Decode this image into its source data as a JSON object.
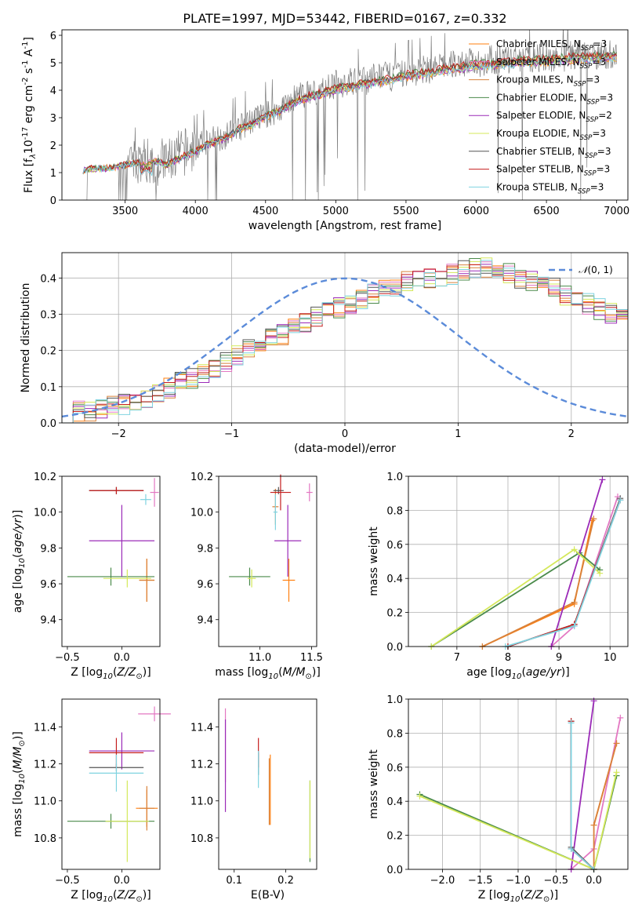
{
  "title": "PLATE=1997, MJD=53442, FIBERID=0167, z=0.332",
  "series": [
    {
      "name": "Chabrier MILES",
      "label": "Chabrier MILES, N$_{SSP}$=3",
      "color": "#ff7f0e"
    },
    {
      "name": "Salpeter MILES",
      "label": "Salpeter MILES, N$_{SSP}$=3",
      "color": "#e377c2"
    },
    {
      "name": "Kroupa MILES",
      "label": "Kroupa MILES, N$_{SSP}$=3",
      "color": "#d9823b"
    },
    {
      "name": "Chabrier ELODIE",
      "label": "Chabrier ELODIE, N$_{SSP}$=3",
      "color": "#4a8a4a"
    },
    {
      "name": "Salpeter ELODIE",
      "label": "Salpeter ELODIE, N$_{SSP}$=2",
      "color": "#9b2bb8"
    },
    {
      "name": "Kroupa ELODIE",
      "label": "Kroupa ELODIE, N$_{SSP}$=3",
      "color": "#d4e85a"
    },
    {
      "name": "Chabrier STELIB",
      "label": "Chabrier STELIB, N$_{SSP}$=3",
      "color": "#555555"
    },
    {
      "name": "Salpeter STELIB",
      "label": "Salpeter STELIB, N$_{SSP}$=3",
      "color": "#c41e1e"
    },
    {
      "name": "Kroupa STELIB",
      "label": "Kroupa STELIB, N$_{SSP}$=3",
      "color": "#7fd3e0"
    }
  ],
  "chart_data": [
    {
      "id": "spectrum",
      "type": "line",
      "xlabel": "wavelength [Angstrom, rest frame]",
      "ylabel": "Flux [f$_\\lambda$10$^{-17}$ erg cm$^{-2}$ s$^{-1}$ A$^{-1}$]",
      "xlim": [
        3050,
        7080
      ],
      "ylim": [
        0,
        6.2
      ],
      "xticks": [
        3500,
        4000,
        4500,
        5000,
        5500,
        6000,
        6500,
        7000
      ],
      "yticks": [
        0,
        1,
        2,
        3,
        4,
        5,
        6
      ],
      "grid": false,
      "legend": "right",
      "data_color": "#808080",
      "x": [
        3200,
        3260,
        3400,
        3500,
        3600,
        3700,
        3800,
        3900,
        4000,
        4100,
        4200,
        4300,
        4400,
        4500,
        4600,
        4700,
        4800,
        4900,
        5000,
        5100,
        5200,
        5300,
        5400,
        5500,
        5600,
        5700,
        5800,
        5900,
        6000,
        6100,
        6200,
        6300,
        6400,
        6500,
        6600,
        6700,
        6800,
        6900,
        7000
      ],
      "model_y": [
        1.1,
        1.15,
        1.2,
        1.3,
        1.4,
        1.45,
        1.3,
        1.6,
        1.8,
        2.1,
        2.25,
        2.6,
        2.8,
        3.1,
        3.3,
        3.6,
        3.8,
        3.95,
        4.1,
        4.2,
        4.3,
        4.4,
        4.45,
        4.6,
        4.65,
        4.75,
        4.85,
        4.9,
        5.0,
        5.0,
        5.05,
        5.1,
        5.15,
        5.15,
        5.2,
        5.25,
        5.25,
        5.3,
        5.3
      ],
      "data_y": [
        1.1,
        1.1,
        1.2,
        1.3,
        1.5,
        1.4,
        1.4,
        1.7,
        1.9,
        2.2,
        2.3,
        2.6,
        2.9,
        3.1,
        3.3,
        3.7,
        3.9,
        4.0,
        4.2,
        4.3,
        4.3,
        4.5,
        4.5,
        4.6,
        4.7,
        4.8,
        4.9,
        5.0,
        5.0,
        5.1,
        5.1,
        5.1,
        5.2,
        5.2,
        5.2,
        5.3,
        5.3,
        5.3,
        5.3
      ]
    },
    {
      "id": "residuals",
      "type": "line",
      "xlabel": "(data-model)/error",
      "ylabel": "Normed distribution",
      "xlim": [
        -2.5,
        2.5
      ],
      "ylim": [
        0,
        0.47
      ],
      "xticks": [
        -2,
        -1,
        0,
        1,
        2
      ],
      "yticks": [
        0.0,
        0.1,
        0.2,
        0.3,
        0.4
      ],
      "grid": true,
      "legend": "top-right",
      "normal_label": "$\\mathcal{N}(0,1)$",
      "normal_color": "#5b8bd9",
      "bin_edges_start": -2.5,
      "bin_width": 0.1,
      "base_hist": [
        0.025,
        0.03,
        0.035,
        0.04,
        0.045,
        0.05,
        0.06,
        0.07,
        0.085,
        0.095,
        0.11,
        0.125,
        0.14,
        0.155,
        0.17,
        0.185,
        0.2,
        0.215,
        0.23,
        0.245,
        0.26,
        0.275,
        0.29,
        0.305,
        0.32,
        0.33,
        0.345,
        0.36,
        0.37,
        0.38,
        0.39,
        0.39,
        0.395,
        0.4,
        0.41,
        0.42,
        0.43,
        0.43,
        0.42,
        0.41,
        0.4,
        0.39,
        0.38,
        0.37,
        0.355,
        0.34,
        0.33,
        0.315,
        0.3,
        0.285
      ]
    },
    {
      "id": "age-vs-Z",
      "type": "scatter",
      "xlabel": "Z [log$_{10}$($Z/Z_\\odot$)]",
      "ylabel": "age  [log$_{10}$($age/yr$)]",
      "xlim": [
        -0.55,
        0.35
      ],
      "ylim": [
        9.25,
        10.2
      ],
      "xticks": [
        -0.5,
        0.0
      ],
      "yticks": [
        9.4,
        9.6,
        9.8,
        10.0,
        10.2
      ]
    },
    {
      "id": "age-vs-mass",
      "type": "scatter",
      "xlabel": "mass [log$_{10}$($M/M_\\odot$)]",
      "ylabel": "",
      "xlim": [
        10.6,
        11.55
      ],
      "ylim": [
        9.25,
        10.2
      ],
      "xticks": [
        11.0,
        11.5
      ],
      "yticks": [
        9.4,
        9.6,
        9.8,
        10.0,
        10.2
      ]
    },
    {
      "id": "massweight-vs-age",
      "type": "line",
      "xlabel": "age  [log$_{10}$($age/yr$)]",
      "ylabel": "mass weight",
      "xlim": [
        6.05,
        10.35
      ],
      "ylim": [
        0.0,
        1.0
      ],
      "xticks": [
        7,
        8,
        9,
        10
      ],
      "yticks": [
        0.0,
        0.2,
        0.4,
        0.6,
        0.8,
        1.0
      ],
      "grid": true
    },
    {
      "id": "mass-vs-Z",
      "type": "scatter",
      "xlabel": "Z [log$_{10}$($Z/Z_\\odot$)]",
      "ylabel": "mass [log$_{10}$($M/M_\\odot$)]",
      "xlim": [
        -0.55,
        0.35
      ],
      "ylim": [
        10.63,
        11.55
      ],
      "xticks": [
        -0.5,
        0.0
      ],
      "yticks": [
        10.8,
        11.0,
        11.2,
        11.4
      ]
    },
    {
      "id": "mass-vs-ebv",
      "type": "scatter",
      "xlabel": "E(B-V)",
      "ylabel": "",
      "xlim": [
        0.07,
        0.26
      ],
      "ylim": [
        10.63,
        11.55
      ],
      "xticks": [
        0.1,
        0.2
      ],
      "yticks": [
        10.8,
        11.0,
        11.2,
        11.4
      ]
    },
    {
      "id": "massweight-vs-Z",
      "type": "line",
      "xlabel": "Z [log$_{10}$($Z/Z_\\odot$)]",
      "ylabel": "mass weight",
      "xlim": [
        -2.45,
        0.45
      ],
      "ylim": [
        0.0,
        1.0
      ],
      "xticks": [
        -2.0,
        -1.5,
        -1.0,
        -0.5,
        0.0
      ],
      "yticks": [
        0.0,
        0.2,
        0.4,
        0.6,
        0.8,
        1.0
      ],
      "grid": true
    }
  ],
  "errorbars": {
    "age_Z": [
      {
        "s": 0,
        "x": 0.23,
        "xe": 0.07,
        "y": 9.62,
        "ye": 0.12
      },
      {
        "s": 1,
        "x": 0.3,
        "xe": 0.04,
        "y": 10.11,
        "ye": 0.08
      },
      {
        "s": 2,
        "x": 0.23,
        "xe": 0.07,
        "y": 9.62,
        "ye": 0.12
      },
      {
        "s": 3,
        "x": -0.1,
        "xe": 0.4,
        "y": 9.64,
        "ye": 0.05
      },
      {
        "s": 4,
        "x": 0.0,
        "xe": 0.3,
        "y": 9.84,
        "ye": 0.2
      },
      {
        "s": 5,
        "x": 0.05,
        "xe": 0.22,
        "y": 9.63,
        "ye": 0.05
      },
      {
        "s": 6,
        "x": -0.05,
        "xe": 0.25,
        "y": 10.12,
        "ye": 0.02
      },
      {
        "s": 7,
        "x": -0.05,
        "xe": 0.25,
        "y": 10.12,
        "ye": 0.02
      },
      {
        "s": 8,
        "x": 0.22,
        "xe": 0.05,
        "y": 10.07,
        "ye": 0.03
      }
    ],
    "age_mass": [
      {
        "s": 0,
        "x": 11.28,
        "xe": 0.06,
        "y": 9.62,
        "ye": 0.12
      },
      {
        "s": 1,
        "x": 11.48,
        "xe": 0.03,
        "y": 10.11,
        "ye": 0.05
      },
      {
        "s": 2,
        "x": 11.15,
        "xe": 0.03,
        "y": 10.03,
        "ye": 0.1
      },
      {
        "s": 3,
        "x": 10.9,
        "xe": 0.2,
        "y": 9.64,
        "ye": 0.05
      },
      {
        "s": 4,
        "x": 11.27,
        "xe": 0.13,
        "y": 9.84,
        "ye": 0.2
      },
      {
        "s": 5,
        "x": 10.92,
        "xe": 0.04,
        "y": 9.63,
        "ye": 0.05
      },
      {
        "s": 6,
        "x": 11.18,
        "xe": 0.05,
        "y": 10.12,
        "ye": 0.02
      },
      {
        "s": 7,
        "x": 11.2,
        "xe": 0.1,
        "y": 10.11,
        "ye": 0.1
      },
      {
        "s": 8,
        "x": 11.15,
        "xe": 0.02,
        "y": 10.0,
        "ye": 0.1
      }
    ],
    "mass_Z": [
      {
        "s": 0,
        "x": 0.23,
        "xe": 0.1,
        "y": 10.96,
        "ye": 0.1
      },
      {
        "s": 1,
        "x": 0.3,
        "xe": 0.15,
        "y": 11.47,
        "ye": 0.04
      },
      {
        "s": 2,
        "x": 0.23,
        "xe": 0.07,
        "y": 10.96,
        "ye": 0.12
      },
      {
        "s": 3,
        "x": -0.1,
        "xe": 0.4,
        "y": 10.89,
        "ye": 0.04
      },
      {
        "s": 4,
        "x": 0.0,
        "xe": 0.3,
        "y": 11.27,
        "ye": 0.1
      },
      {
        "s": 5,
        "x": 0.05,
        "xe": 0.2,
        "y": 10.89,
        "ye": 0.22
      },
      {
        "s": 6,
        "x": -0.05,
        "xe": 0.25,
        "y": 11.18,
        "ye": 0.02
      },
      {
        "s": 7,
        "x": -0.05,
        "xe": 0.25,
        "y": 11.26,
        "ye": 0.08
      },
      {
        "s": 8,
        "x": -0.05,
        "xe": 0.25,
        "y": 11.15,
        "ye": 0.1
      }
    ],
    "mass_ebv": [
      {
        "s": 0,
        "x": 0.17,
        "y": 11.06,
        "ye": 0.19
      },
      {
        "s": 1,
        "x": 0.083,
        "y": 11.3,
        "ye": 0.2
      },
      {
        "s": 2,
        "x": 0.168,
        "y": 11.05,
        "ye": 0.18
      },
      {
        "s": 3,
        "x": 0.247,
        "y": 10.89,
        "ye": 0.22
      },
      {
        "s": 4,
        "x": 0.083,
        "y": 11.19,
        "ye": 0.25
      },
      {
        "s": 5,
        "x": 0.247,
        "y": 10.9,
        "ye": 0.21
      },
      {
        "s": 6,
        "x": 0.147,
        "y": 11.2,
        "ye": 0.06
      },
      {
        "s": 7,
        "x": 0.147,
        "y": 11.26,
        "ye": 0.08
      },
      {
        "s": 8,
        "x": 0.147,
        "y": 11.17,
        "ye": 0.1
      }
    ]
  },
  "weights": {
    "age": [
      {
        "s": 0,
        "pts": [
          [
            7.5,
            0
          ],
          [
            9.3,
            0.25
          ],
          [
            9.65,
            0.74
          ]
        ]
      },
      {
        "s": 1,
        "pts": [
          [
            8.85,
            0.0
          ],
          [
            9.3,
            0.12
          ],
          [
            10.15,
            0.88
          ]
        ]
      },
      {
        "s": 2,
        "pts": [
          [
            7.5,
            0.0
          ],
          [
            9.3,
            0.26
          ],
          [
            9.68,
            0.75
          ]
        ]
      },
      {
        "s": 3,
        "pts": [
          [
            6.5,
            0.0
          ],
          [
            9.4,
            0.55
          ],
          [
            9.8,
            0.45
          ]
        ]
      },
      {
        "s": 4,
        "pts": [
          [
            8.85,
            0.0
          ],
          [
            9.85,
            0.98
          ]
        ]
      },
      {
        "s": 5,
        "pts": [
          [
            6.5,
            0.0
          ],
          [
            9.3,
            0.57
          ],
          [
            9.8,
            0.43
          ]
        ]
      },
      {
        "s": 6,
        "pts": [
          [
            8.0,
            0.0
          ],
          [
            9.3,
            0.13
          ],
          [
            10.2,
            0.87
          ]
        ]
      },
      {
        "s": 7,
        "pts": [
          [
            8.0,
            0.0
          ],
          [
            9.3,
            0.13
          ],
          [
            10.2,
            0.86
          ]
        ]
      },
      {
        "s": 8,
        "pts": [
          [
            7.95,
            0.0
          ],
          [
            9.3,
            0.12
          ],
          [
            10.2,
            0.86
          ]
        ]
      }
    ],
    "Z": [
      {
        "s": 0,
        "pts": [
          [
            0.0,
            0.26
          ],
          [
            0.3,
            0.74
          ]
        ]
      },
      {
        "s": 1,
        "pts": [
          [
            -0.3,
            0.0
          ],
          [
            0.0,
            0.12
          ],
          [
            0.35,
            0.89
          ]
        ]
      },
      {
        "s": 2,
        "pts": [
          [
            0.0,
            0.0
          ],
          [
            0.0,
            0.26
          ],
          [
            0.3,
            0.74
          ]
        ]
      },
      {
        "s": 3,
        "pts": [
          [
            -2.3,
            0.44
          ],
          [
            0.0,
            0.0
          ],
          [
            0.3,
            0.55
          ]
        ]
      },
      {
        "s": 4,
        "pts": [
          [
            -0.3,
            0.0
          ],
          [
            0.0,
            0.99
          ]
        ]
      },
      {
        "s": 5,
        "pts": [
          [
            -2.3,
            0.43
          ],
          [
            0.0,
            0.0
          ],
          [
            0.3,
            0.57
          ]
        ]
      },
      {
        "s": 6,
        "pts": [
          [
            -0.3,
            0.87
          ],
          [
            -0.3,
            0.13
          ],
          [
            0.0,
            0.0
          ]
        ]
      },
      {
        "s": 7,
        "pts": [
          [
            -0.3,
            0.87
          ],
          [
            -0.3,
            0.12
          ],
          [
            0.0,
            0.0
          ]
        ]
      },
      {
        "s": 8,
        "pts": [
          [
            -0.3,
            0.86
          ],
          [
            -0.3,
            0.12
          ],
          [
            0.0,
            0.0
          ]
        ]
      }
    ]
  }
}
